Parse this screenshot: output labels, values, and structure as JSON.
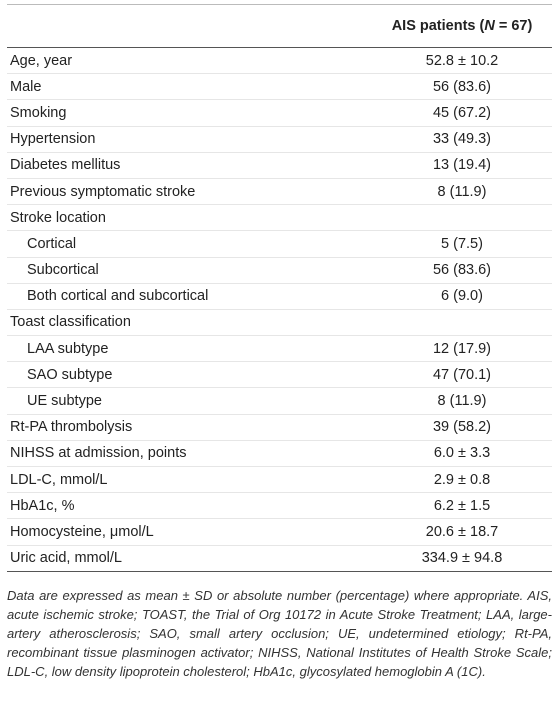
{
  "table": {
    "header": [
      "AIS patients (",
      "N",
      " = 67)"
    ],
    "rows": [
      {
        "label": "Age, year",
        "value": "52.8 ± 10.2"
      },
      {
        "label": "Male",
        "value": "56 (83.6)"
      },
      {
        "label": "Smoking",
        "value": "45 (67.2)"
      },
      {
        "label": "Hypertension",
        "value": "33 (49.3)"
      },
      {
        "label": "Diabetes mellitus",
        "value": "13 (19.4)"
      },
      {
        "label": "Previous symptomatic stroke",
        "value": "8 (11.9)"
      },
      {
        "label": "Stroke location",
        "subrows": [
          {
            "label": "Cortical",
            "value": "5 (7.5)"
          },
          {
            "label": "Subcortical",
            "value": "56 (83.6)"
          },
          {
            "label": "Both cortical and subcortical",
            "value": "6 (9.0)"
          }
        ]
      },
      {
        "label": "Toast classification",
        "subrows": [
          {
            "label": "LAA subtype",
            "value": "12 (17.9)"
          },
          {
            "label": "SAO subtype",
            "value": "47 (70.1)"
          },
          {
            "label": "UE subtype",
            "value": "8 (11.9)"
          }
        ]
      },
      {
        "label": "Rt-PA thrombolysis",
        "value": "39 (58.2)"
      },
      {
        "label": "NIHSS at admission, points",
        "value": "6.0 ± 3.3"
      },
      {
        "label": "LDL-C, mmol/L",
        "value": "2.9 ± 0.8"
      },
      {
        "label": "HbA1c, %",
        "value": "6.2 ± 1.5"
      },
      {
        "label": "Homocysteine, μmol/L",
        "value": "20.6 ± 18.7"
      },
      {
        "label": "Uric acid, mmol/L",
        "value": "334.9 ± 94.8"
      }
    ],
    "note": "Data are expressed as mean ± SD or absolute number (percentage) where appropriate. AIS, acute ischemic stroke; TOAST, the Trial of Org 10172 in Acute Stroke Treatment; LAA, large-artery atherosclerosis; SAO, small artery occlusion; UE, undetermined etiology; Rt-PA, recombinant tissue plasminogen activator; NIHSS, National Institutes of Health Stroke Scale; LDL-C, low density lipoprotein cholesterol; HbA1c, glycosylated hemoglobin A (1C)."
  }
}
